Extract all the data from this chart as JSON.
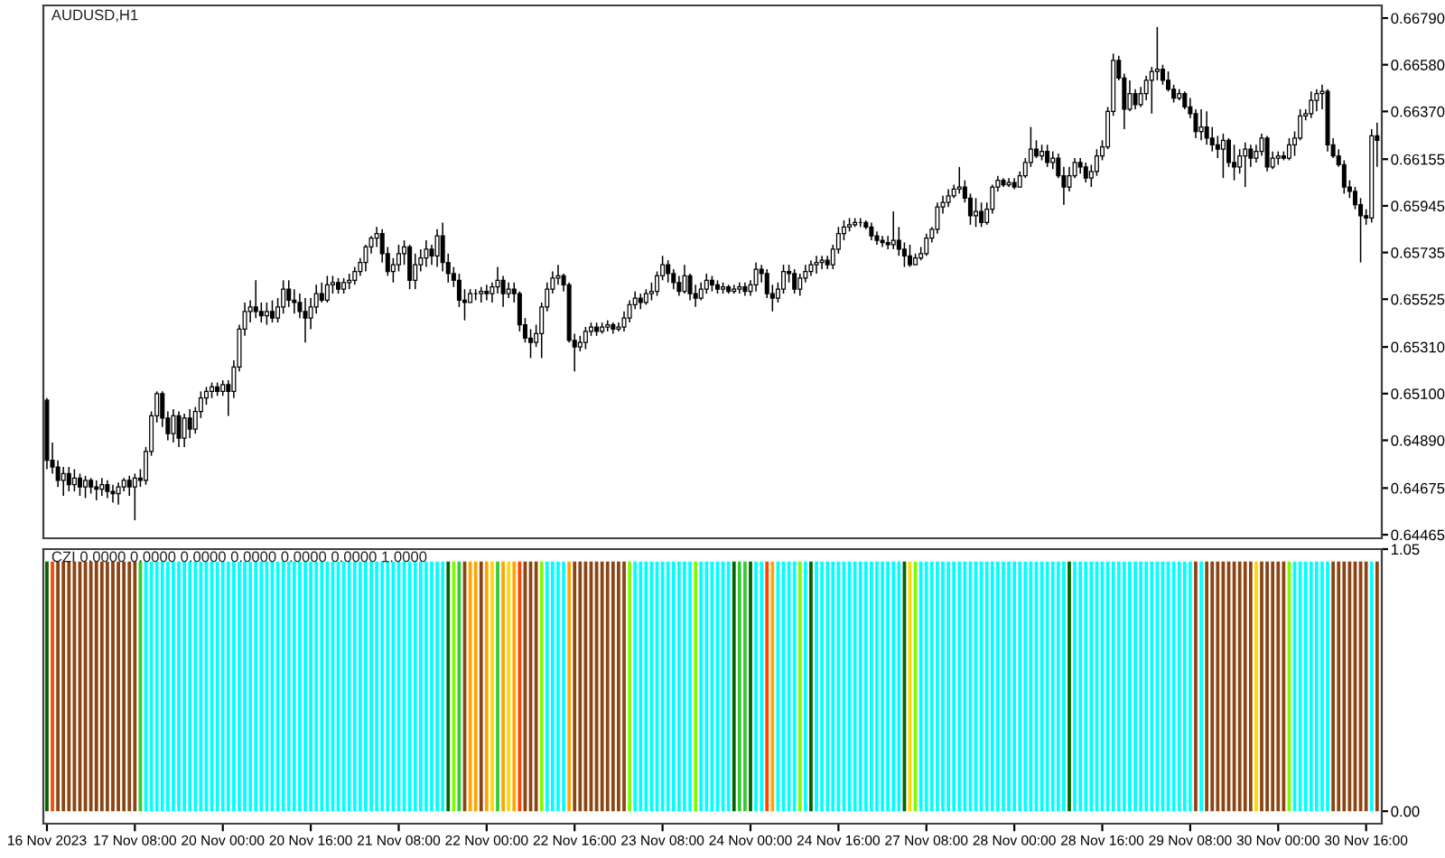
{
  "chart_data": [
    {
      "type": "candlestick",
      "title": "AUDUSD,H1",
      "categories": [
        null,
        null,
        null,
        null,
        null,
        null,
        null,
        null,
        null,
        null,
        null,
        null,
        null,
        null,
        null,
        null,
        null,
        null,
        null,
        null,
        null,
        null,
        null,
        null,
        null,
        null,
        null,
        null,
        null,
        null,
        null,
        null,
        null,
        null,
        null,
        null,
        null,
        null,
        null,
        null,
        null,
        null,
        null,
        null,
        null,
        null,
        null,
        null,
        null,
        null,
        null,
        null,
        null,
        null,
        null,
        null,
        null,
        null,
        null,
        null,
        null,
        null,
        null,
        null,
        null,
        null,
        null,
        null,
        null,
        null,
        null,
        null,
        null,
        null,
        null,
        null,
        null,
        null,
        null,
        null,
        null,
        null,
        null,
        null,
        null,
        null,
        null,
        null,
        null,
        null,
        null,
        null,
        null,
        null,
        null,
        null,
        null,
        null,
        null,
        null,
        null,
        null,
        null,
        null,
        null,
        null,
        null,
        null,
        null,
        null,
        null,
        null,
        null,
        null,
        null,
        null,
        null,
        null,
        null,
        null,
        null,
        null,
        null,
        null,
        null,
        null,
        null,
        null,
        null,
        null,
        null,
        null,
        null,
        null,
        null,
        null,
        null,
        null,
        null,
        null,
        null,
        null,
        null,
        null,
        null,
        null,
        null,
        null,
        null,
        null,
        null,
        null,
        null,
        null,
        null,
        null,
        null,
        null,
        null,
        null,
        null,
        null,
        null,
        null,
        null,
        null,
        null,
        null,
        null,
        null,
        null,
        null,
        null,
        null,
        null,
        null,
        null,
        null,
        null,
        null,
        null,
        null,
        null,
        null,
        null,
        null,
        null,
        null,
        null,
        null,
        null,
        null,
        null,
        null,
        null,
        null,
        null,
        null,
        null,
        null,
        null,
        null,
        null,
        null,
        null,
        null,
        null,
        null,
        null,
        null,
        null,
        null,
        null,
        null,
        null,
        null,
        null,
        null,
        null,
        null,
        null,
        null,
        null,
        null,
        null,
        null,
        null,
        null,
        null,
        null,
        null,
        null,
        null,
        null,
        null,
        null,
        null,
        null,
        null,
        null,
        null,
        null,
        null
      ],
      "ohlc": [
        [
          0.6507,
          0.6508,
          0.6476,
          0.648
        ],
        [
          0.648,
          0.6488,
          0.6474,
          0.6477
        ],
        [
          0.6477,
          0.648,
          0.6468,
          0.6471
        ],
        [
          0.6471,
          0.6477,
          0.6464,
          0.6474
        ],
        [
          0.6474,
          0.6477,
          0.6466,
          0.6469
        ],
        [
          0.6469,
          0.6476,
          0.6466,
          0.6472
        ],
        [
          0.6472,
          0.6474,
          0.6464,
          0.6468
        ],
        [
          0.6468,
          0.6473,
          0.6463,
          0.6471
        ],
        [
          0.6471,
          0.6472,
          0.6465,
          0.6468
        ],
        [
          0.6468,
          0.6471,
          0.6462,
          0.6467
        ],
        [
          0.6467,
          0.6472,
          0.6464,
          0.6469
        ],
        [
          0.6469,
          0.6471,
          0.6463,
          0.6466
        ],
        [
          0.6466,
          0.6469,
          0.6461,
          0.6465
        ],
        [
          0.6465,
          0.647,
          0.646,
          0.6468
        ],
        [
          0.6468,
          0.6472,
          0.6466,
          0.6471
        ],
        [
          0.6471,
          0.6473,
          0.6464,
          0.6468
        ],
        [
          0.6468,
          0.6474,
          0.6453,
          0.6472
        ],
        [
          0.6472,
          0.6476,
          0.6468,
          0.6471
        ],
        [
          0.6471,
          0.6486,
          0.6469,
          0.6484
        ],
        [
          0.6484,
          0.6502,
          0.6482,
          0.65
        ],
        [
          0.65,
          0.6511,
          0.6497,
          0.651
        ],
        [
          0.651,
          0.6511,
          0.6495,
          0.6499
        ],
        [
          0.6499,
          0.6502,
          0.6489,
          0.6492
        ],
        [
          0.6492,
          0.6503,
          0.6488,
          0.65
        ],
        [
          0.65,
          0.6502,
          0.6486,
          0.649
        ],
        [
          0.649,
          0.6501,
          0.6486,
          0.6499
        ],
        [
          0.6499,
          0.6503,
          0.649,
          0.6494
        ],
        [
          0.6494,
          0.6504,
          0.6492,
          0.6502
        ],
        [
          0.6502,
          0.6511,
          0.6499,
          0.6508
        ],
        [
          0.6508,
          0.6513,
          0.6505,
          0.6511
        ],
        [
          0.6511,
          0.6515,
          0.6508,
          0.6513
        ],
        [
          0.6513,
          0.6515,
          0.6509,
          0.6511
        ],
        [
          0.6511,
          0.6516,
          0.6509,
          0.6514
        ],
        [
          0.6514,
          0.6516,
          0.65,
          0.6511
        ],
        [
          0.6511,
          0.6525,
          0.6508,
          0.6522
        ],
        [
          0.6522,
          0.6541,
          0.652,
          0.6539
        ],
        [
          0.6539,
          0.6551,
          0.6536,
          0.6547
        ],
        [
          0.6547,
          0.6552,
          0.6542,
          0.6549
        ],
        [
          0.6549,
          0.6561,
          0.6544,
          0.6547
        ],
        [
          0.6547,
          0.6551,
          0.6542,
          0.6545
        ],
        [
          0.6545,
          0.6551,
          0.6541,
          0.6547
        ],
        [
          0.6547,
          0.6552,
          0.6542,
          0.6544
        ],
        [
          0.6544,
          0.6553,
          0.6542,
          0.6549
        ],
        [
          0.6549,
          0.6561,
          0.6546,
          0.6557
        ],
        [
          0.6557,
          0.6561,
          0.6549,
          0.6552
        ],
        [
          0.6552,
          0.6557,
          0.6546,
          0.6551
        ],
        [
          0.6551,
          0.6555,
          0.6544,
          0.6547
        ],
        [
          0.6547,
          0.6553,
          0.6533,
          0.6544
        ],
        [
          0.6544,
          0.6553,
          0.6539,
          0.6549
        ],
        [
          0.6549,
          0.6559,
          0.6546,
          0.6555
        ],
        [
          0.6555,
          0.656,
          0.6551,
          0.6552
        ],
        [
          0.6552,
          0.6563,
          0.6551,
          0.6559
        ],
        [
          0.6559,
          0.6563,
          0.6555,
          0.656
        ],
        [
          0.656,
          0.6562,
          0.6555,
          0.6557
        ],
        [
          0.6557,
          0.6562,
          0.6555,
          0.656
        ],
        [
          0.656,
          0.6564,
          0.6557,
          0.6561
        ],
        [
          0.6561,
          0.6567,
          0.6559,
          0.6565
        ],
        [
          0.6565,
          0.6571,
          0.6563,
          0.6569
        ],
        [
          0.6569,
          0.6577,
          0.6565,
          0.6576
        ],
        [
          0.6576,
          0.6581,
          0.6573,
          0.658
        ],
        [
          0.658,
          0.6585,
          0.6576,
          0.6582
        ],
        [
          0.6582,
          0.6584,
          0.6569,
          0.6573
        ],
        [
          0.6573,
          0.6576,
          0.6563,
          0.6565
        ],
        [
          0.6565,
          0.6571,
          0.656,
          0.6568
        ],
        [
          0.6568,
          0.6577,
          0.6565,
          0.6573
        ],
        [
          0.6573,
          0.6579,
          0.6568,
          0.6576
        ],
        [
          0.6576,
          0.6577,
          0.6557,
          0.6561
        ],
        [
          0.6561,
          0.6573,
          0.6557,
          0.6568
        ],
        [
          0.6568,
          0.6575,
          0.6565,
          0.6571
        ],
        [
          0.6571,
          0.6579,
          0.6567,
          0.6575
        ],
        [
          0.6575,
          0.6577,
          0.6568,
          0.6572
        ],
        [
          0.6572,
          0.6584,
          0.6567,
          0.6581
        ],
        [
          0.6581,
          0.6587,
          0.6565,
          0.6569
        ],
        [
          0.6569,
          0.6573,
          0.656,
          0.6564
        ],
        [
          0.6564,
          0.6567,
          0.6558,
          0.6561
        ],
        [
          0.6561,
          0.6564,
          0.6549,
          0.6552
        ],
        [
          0.6552,
          0.6557,
          0.6543,
          0.6551
        ],
        [
          0.6551,
          0.6557,
          0.6551,
          0.6555
        ],
        [
          0.6555,
          0.6557,
          0.6552,
          0.6555
        ],
        [
          0.6555,
          0.6558,
          0.6551,
          0.6556
        ],
        [
          0.6556,
          0.6559,
          0.6552,
          0.6555
        ],
        [
          0.6555,
          0.656,
          0.6551,
          0.6558
        ],
        [
          0.6558,
          0.6567,
          0.6555,
          0.6561
        ],
        [
          0.6561,
          0.6563,
          0.6549,
          0.6555
        ],
        [
          0.6555,
          0.656,
          0.6553,
          0.6557
        ],
        [
          0.6557,
          0.656,
          0.6551,
          0.6555
        ],
        [
          0.6555,
          0.6556,
          0.6538,
          0.6541
        ],
        [
          0.6541,
          0.6544,
          0.6533,
          0.6535
        ],
        [
          0.6535,
          0.6539,
          0.6526,
          0.6533
        ],
        [
          0.6533,
          0.6541,
          0.6531,
          0.6537
        ],
        [
          0.6537,
          0.6551,
          0.6526,
          0.6549
        ],
        [
          0.6549,
          0.656,
          0.6547,
          0.6557
        ],
        [
          0.6557,
          0.6565,
          0.6555,
          0.6562
        ],
        [
          0.6562,
          0.6568,
          0.6559,
          0.6563
        ],
        [
          0.6563,
          0.6564,
          0.6556,
          0.6559
        ],
        [
          0.6559,
          0.656,
          0.6533,
          0.6534
        ],
        [
          0.6534,
          0.6537,
          0.652,
          0.6531
        ],
        [
          0.6531,
          0.6536,
          0.6529,
          0.6533
        ],
        [
          0.6533,
          0.654,
          0.653,
          0.6538
        ],
        [
          0.6538,
          0.6542,
          0.6536,
          0.654
        ],
        [
          0.654,
          0.6542,
          0.6536,
          0.6538
        ],
        [
          0.6538,
          0.6542,
          0.6537,
          0.654
        ],
        [
          0.654,
          0.6543,
          0.6538,
          0.6541
        ],
        [
          0.6541,
          0.6542,
          0.6537,
          0.6539
        ],
        [
          0.6539,
          0.6542,
          0.6538,
          0.654
        ],
        [
          0.654,
          0.6547,
          0.6538,
          0.6544
        ],
        [
          0.6544,
          0.6552,
          0.6542,
          0.655
        ],
        [
          0.655,
          0.6556,
          0.6548,
          0.6553
        ],
        [
          0.6553,
          0.6555,
          0.6548,
          0.6551
        ],
        [
          0.6551,
          0.6557,
          0.655,
          0.6555
        ],
        [
          0.6555,
          0.656,
          0.6552,
          0.6556
        ],
        [
          0.6556,
          0.6565,
          0.6554,
          0.6563
        ],
        [
          0.6563,
          0.6572,
          0.6561,
          0.6568
        ],
        [
          0.6568,
          0.657,
          0.656,
          0.6564
        ],
        [
          0.6564,
          0.6566,
          0.6557,
          0.656
        ],
        [
          0.656,
          0.6563,
          0.6554,
          0.6556
        ],
        [
          0.6556,
          0.6568,
          0.6555,
          0.6563
        ],
        [
          0.6563,
          0.6564,
          0.6552,
          0.6555
        ],
        [
          0.6555,
          0.6559,
          0.6549,
          0.6553
        ],
        [
          0.6553,
          0.656,
          0.6552,
          0.6557
        ],
        [
          0.6557,
          0.6564,
          0.6555,
          0.6561
        ],
        [
          0.6561,
          0.6563,
          0.6556,
          0.6559
        ],
        [
          0.6559,
          0.6561,
          0.6555,
          0.6557
        ],
        [
          0.6557,
          0.656,
          0.6555,
          0.6558
        ],
        [
          0.6558,
          0.6559,
          0.6555,
          0.6556
        ],
        [
          0.6556,
          0.6559,
          0.6555,
          0.6557
        ],
        [
          0.6557,
          0.656,
          0.6555,
          0.6558
        ],
        [
          0.6558,
          0.656,
          0.6554,
          0.6556
        ],
        [
          0.6556,
          0.6561,
          0.6554,
          0.6559
        ],
        [
          0.6559,
          0.6569,
          0.6556,
          0.6566
        ],
        [
          0.6566,
          0.6568,
          0.656,
          0.6564
        ],
        [
          0.6564,
          0.6566,
          0.6553,
          0.6555
        ],
        [
          0.6555,
          0.6559,
          0.6547,
          0.6553
        ],
        [
          0.6553,
          0.656,
          0.6551,
          0.6557
        ],
        [
          0.6557,
          0.6568,
          0.6555,
          0.6565
        ],
        [
          0.6565,
          0.6568,
          0.656,
          0.6564
        ],
        [
          0.6564,
          0.6566,
          0.6555,
          0.6557
        ],
        [
          0.6557,
          0.6564,
          0.6554,
          0.6562
        ],
        [
          0.6562,
          0.6568,
          0.656,
          0.6565
        ],
        [
          0.6565,
          0.657,
          0.6563,
          0.6568
        ],
        [
          0.6568,
          0.6572,
          0.6564,
          0.6569
        ],
        [
          0.6569,
          0.6572,
          0.6566,
          0.657
        ],
        [
          0.657,
          0.6572,
          0.6566,
          0.6568
        ],
        [
          0.6568,
          0.6577,
          0.6566,
          0.6575
        ],
        [
          0.6575,
          0.6585,
          0.6573,
          0.6582
        ],
        [
          0.6582,
          0.6588,
          0.6579,
          0.6585
        ],
        [
          0.6585,
          0.6589,
          0.6583,
          0.6586
        ],
        [
          0.6586,
          0.6589,
          0.6585,
          0.6587
        ],
        [
          0.6587,
          0.6589,
          0.6585,
          0.6587
        ],
        [
          0.6587,
          0.6588,
          0.6584,
          0.6585
        ],
        [
          0.6585,
          0.6587,
          0.6579,
          0.6581
        ],
        [
          0.6581,
          0.6583,
          0.6577,
          0.6579
        ],
        [
          0.6579,
          0.6581,
          0.6576,
          0.6578
        ],
        [
          0.6578,
          0.6581,
          0.6575,
          0.6577
        ],
        [
          0.6577,
          0.6592,
          0.6575,
          0.6579
        ],
        [
          0.6579,
          0.6585,
          0.6572,
          0.6575
        ],
        [
          0.6575,
          0.6578,
          0.6567,
          0.6572
        ],
        [
          0.6572,
          0.6577,
          0.6567,
          0.6568
        ],
        [
          0.6568,
          0.6573,
          0.6568,
          0.6571
        ],
        [
          0.6571,
          0.6576,
          0.657,
          0.6573
        ],
        [
          0.6573,
          0.6582,
          0.6572,
          0.658
        ],
        [
          0.658,
          0.6585,
          0.6578,
          0.6584
        ],
        [
          0.6584,
          0.6596,
          0.6582,
          0.6594
        ],
        [
          0.6594,
          0.6599,
          0.6591,
          0.6596
        ],
        [
          0.6596,
          0.6602,
          0.6594,
          0.6599
        ],
        [
          0.6599,
          0.6604,
          0.6598,
          0.6602
        ],
        [
          0.6602,
          0.6612,
          0.66,
          0.6603
        ],
        [
          0.6603,
          0.6606,
          0.6596,
          0.6598
        ],
        [
          0.6598,
          0.66,
          0.6586,
          0.659
        ],
        [
          0.659,
          0.6598,
          0.6585,
          0.6592
        ],
        [
          0.6592,
          0.6596,
          0.6585,
          0.6587
        ],
        [
          0.6587,
          0.6596,
          0.6586,
          0.6593
        ],
        [
          0.6593,
          0.6604,
          0.6591,
          0.6603
        ],
        [
          0.6603,
          0.6608,
          0.6601,
          0.6606
        ],
        [
          0.6606,
          0.6607,
          0.6603,
          0.6604
        ],
        [
          0.6604,
          0.6607,
          0.6603,
          0.6605
        ],
        [
          0.6605,
          0.6607,
          0.6602,
          0.6603
        ],
        [
          0.6603,
          0.661,
          0.6603,
          0.6608
        ],
        [
          0.6608,
          0.6616,
          0.6607,
          0.6614
        ],
        [
          0.6614,
          0.663,
          0.6612,
          0.662
        ],
        [
          0.662,
          0.6624,
          0.6616,
          0.6617
        ],
        [
          0.6617,
          0.6622,
          0.6615,
          0.6619
        ],
        [
          0.6619,
          0.6622,
          0.6612,
          0.6614
        ],
        [
          0.6614,
          0.6619,
          0.6611,
          0.6616
        ],
        [
          0.6616,
          0.6618,
          0.6607,
          0.6608
        ],
        [
          0.6608,
          0.6612,
          0.6595,
          0.6603
        ],
        [
          0.6603,
          0.6612,
          0.6601,
          0.6608
        ],
        [
          0.6608,
          0.6616,
          0.6607,
          0.6614
        ],
        [
          0.6614,
          0.6616,
          0.6609,
          0.6612
        ],
        [
          0.6612,
          0.6614,
          0.6605,
          0.6607
        ],
        [
          0.6607,
          0.6613,
          0.6603,
          0.661
        ],
        [
          0.661,
          0.662,
          0.6608,
          0.6617
        ],
        [
          0.6617,
          0.6624,
          0.6615,
          0.6621
        ],
        [
          0.6621,
          0.6639,
          0.662,
          0.6637
        ],
        [
          0.6637,
          0.6663,
          0.6635,
          0.666
        ],
        [
          0.666,
          0.6662,
          0.6651,
          0.6652
        ],
        [
          0.6652,
          0.6654,
          0.6629,
          0.6638
        ],
        [
          0.6638,
          0.6651,
          0.6637,
          0.6645
        ],
        [
          0.6645,
          0.6647,
          0.6638,
          0.664
        ],
        [
          0.664,
          0.6648,
          0.6639,
          0.6645
        ],
        [
          0.6645,
          0.6653,
          0.6642,
          0.6651
        ],
        [
          0.6651,
          0.6657,
          0.6636,
          0.6655
        ],
        [
          0.6655,
          0.6675,
          0.6651,
          0.6656
        ],
        [
          0.6656,
          0.6658,
          0.6649,
          0.6651
        ],
        [
          0.6651,
          0.6655,
          0.6646,
          0.6647
        ],
        [
          0.6647,
          0.6649,
          0.6641,
          0.6643
        ],
        [
          0.6643,
          0.6647,
          0.6642,
          0.6645
        ],
        [
          0.6645,
          0.6646,
          0.6638,
          0.6639
        ],
        [
          0.6639,
          0.6643,
          0.6634,
          0.6636
        ],
        [
          0.6636,
          0.6638,
          0.6625,
          0.6628
        ],
        [
          0.6628,
          0.6638,
          0.6624,
          0.663
        ],
        [
          0.663,
          0.6637,
          0.6622,
          0.6625
        ],
        [
          0.6625,
          0.663,
          0.6619,
          0.6622
        ],
        [
          0.6622,
          0.6626,
          0.6616,
          0.662
        ],
        [
          0.662,
          0.6627,
          0.6607,
          0.6624
        ],
        [
          0.6624,
          0.6625,
          0.6612,
          0.6614
        ],
        [
          0.6614,
          0.6622,
          0.6606,
          0.6612
        ],
        [
          0.6612,
          0.662,
          0.6609,
          0.6617
        ],
        [
          0.6617,
          0.6623,
          0.6603,
          0.662
        ],
        [
          0.662,
          0.6622,
          0.6612,
          0.6616
        ],
        [
          0.6616,
          0.6622,
          0.6614,
          0.6619
        ],
        [
          0.6619,
          0.6627,
          0.6617,
          0.6625
        ],
        [
          0.6625,
          0.6626,
          0.661,
          0.6612
        ],
        [
          0.6612,
          0.6619,
          0.6611,
          0.6616
        ],
        [
          0.6616,
          0.6619,
          0.6613,
          0.6617
        ],
        [
          0.6617,
          0.6619,
          0.6615,
          0.6616
        ],
        [
          0.6616,
          0.6625,
          0.6615,
          0.6622
        ],
        [
          0.6622,
          0.6628,
          0.6617,
          0.6625
        ],
        [
          0.6625,
          0.6638,
          0.6624,
          0.6635
        ],
        [
          0.6635,
          0.6638,
          0.6633,
          0.6636
        ],
        [
          0.6636,
          0.6646,
          0.6634,
          0.6642
        ],
        [
          0.6642,
          0.6647,
          0.6637,
          0.6645
        ],
        [
          0.6645,
          0.6649,
          0.6638,
          0.6646
        ],
        [
          0.6646,
          0.6647,
          0.6619,
          0.6622
        ],
        [
          0.6622,
          0.6625,
          0.6616,
          0.6617
        ],
        [
          0.6617,
          0.662,
          0.6612,
          0.6613
        ],
        [
          0.6613,
          0.6615,
          0.66,
          0.6603
        ],
        [
          0.6603,
          0.6606,
          0.6598,
          0.6601
        ],
        [
          0.6601,
          0.6603,
          0.6593,
          0.6595
        ],
        [
          0.6595,
          0.6598,
          0.6569,
          0.659
        ],
        [
          0.659,
          0.6593,
          0.6586,
          0.6589
        ],
        [
          0.6589,
          0.6629,
          0.6587,
          0.6626
        ],
        [
          0.6626,
          0.6632,
          0.6612,
          0.6624
        ]
      ],
      "ylim": [
        0.64449,
        0.66847
      ],
      "yticks": [
        {
          "value": 0.6679,
          "label": "0.66790"
        },
        {
          "value": 0.6658,
          "label": "0.66580"
        },
        {
          "value": 0.6637,
          "label": "0.66370"
        },
        0.66155,
        0.65945,
        0.65735,
        0.65525,
        {
          "value": 0.6531,
          "label": "0.65310"
        },
        {
          "value": 0.651,
          "label": "0.65100"
        },
        {
          "value": 0.6489,
          "label": "0.64890"
        },
        0.64675,
        0.64465
      ],
      "tick_labels": "y"
    },
    {
      "type": "bar",
      "title": "CZI 0.0000 0.0000 0.0000 0.0000 0.0000 0.0000 1.0000",
      "categories": [
        "16 Nov 2023",
        null,
        null,
        null,
        null,
        null,
        null,
        null,
        null,
        null,
        null,
        null,
        null,
        null,
        null,
        null,
        "17 Nov 08:00",
        null,
        null,
        null,
        null,
        null,
        null,
        null,
        null,
        null,
        null,
        null,
        null,
        null,
        null,
        null,
        "20 Nov 00:00",
        null,
        null,
        null,
        null,
        null,
        null,
        null,
        null,
        null,
        null,
        null,
        null,
        null,
        null,
        null,
        "20 Nov 16:00",
        null,
        null,
        null,
        null,
        null,
        null,
        null,
        null,
        null,
        null,
        null,
        null,
        null,
        null,
        null,
        "21 Nov 08:00",
        null,
        null,
        null,
        null,
        null,
        null,
        null,
        null,
        null,
        null,
        null,
        null,
        null,
        null,
        null,
        "22 Nov 00:00",
        null,
        null,
        null,
        null,
        null,
        null,
        null,
        null,
        null,
        null,
        null,
        null,
        null,
        null,
        null,
        "22 Nov 16:00",
        null,
        null,
        null,
        null,
        null,
        null,
        null,
        null,
        null,
        null,
        null,
        null,
        null,
        null,
        null,
        "23 Nov 08:00",
        null,
        null,
        null,
        null,
        null,
        null,
        null,
        null,
        null,
        null,
        null,
        null,
        null,
        null,
        null,
        "24 Nov 00:00",
        null,
        null,
        null,
        null,
        null,
        null,
        null,
        null,
        null,
        null,
        null,
        null,
        null,
        null,
        null,
        "24 Nov 16:00",
        null,
        null,
        null,
        null,
        null,
        null,
        null,
        null,
        null,
        null,
        null,
        null,
        null,
        null,
        null,
        "27 Nov 08:00",
        null,
        null,
        null,
        null,
        null,
        null,
        null,
        null,
        null,
        null,
        null,
        null,
        null,
        null,
        null,
        "28 Nov 00:00",
        null,
        null,
        null,
        null,
        null,
        null,
        null,
        null,
        null,
        null,
        null,
        null,
        null,
        null,
        null,
        "28 Nov 16:00",
        null,
        null,
        null,
        null,
        null,
        null,
        null,
        null,
        null,
        null,
        null,
        null,
        null,
        null,
        null,
        "29 Nov 08:00",
        null,
        null,
        null,
        null,
        null,
        null,
        null,
        null,
        null,
        null,
        null,
        null,
        null,
        null,
        null,
        "30 Nov 00:00",
        null,
        null,
        null,
        null,
        null,
        null,
        null,
        null,
        null,
        null,
        null,
        null,
        null,
        null,
        null,
        "30 Nov 16:00",
        null,
        null
      ],
      "values": [
        1,
        1,
        1,
        1,
        1,
        1,
        1,
        1,
        1,
        1,
        1,
        1,
        1,
        1,
        1,
        1,
        1,
        1,
        1,
        1,
        1,
        1,
        1,
        1,
        1,
        1,
        1,
        1,
        1,
        1,
        1,
        1,
        1,
        1,
        1,
        1,
        1,
        1,
        1,
        1,
        1,
        1,
        1,
        1,
        1,
        1,
        1,
        1,
        1,
        1,
        1,
        1,
        1,
        1,
        1,
        1,
        1,
        1,
        1,
        1,
        1,
        1,
        1,
        1,
        1,
        1,
        1,
        1,
        1,
        1,
        1,
        1,
        1,
        1,
        1,
        1,
        1,
        1,
        1,
        1,
        1,
        1,
        1,
        1,
        1,
        1,
        1,
        1,
        1,
        1,
        1,
        1,
        1,
        1,
        1,
        1,
        1,
        1,
        1,
        1,
        1,
        1,
        1,
        1,
        1,
        1,
        1,
        1,
        1,
        1,
        1,
        1,
        1,
        1,
        1,
        1,
        1,
        1,
        1,
        1,
        1,
        1,
        1,
        1,
        1,
        1,
        1,
        1,
        1,
        1,
        1,
        1,
        1,
        1,
        1,
        1,
        1,
        1,
        1,
        1,
        1,
        1,
        1,
        1,
        1,
        1,
        1,
        1,
        1,
        1,
        1,
        1,
        1,
        1,
        1,
        1,
        1,
        1,
        1,
        1,
        1,
        1,
        1,
        1,
        1,
        1,
        1,
        1,
        1,
        1,
        1,
        1,
        1,
        1,
        1,
        1,
        1,
        1,
        1,
        1,
        1,
        1,
        1,
        1,
        1,
        1,
        1,
        1,
        1,
        1,
        1,
        1,
        1,
        1,
        1,
        1,
        1,
        1,
        1,
        1,
        1,
        1,
        1,
        1,
        1,
        1,
        1,
        1,
        1,
        1,
        1,
        1,
        1,
        1,
        1,
        1,
        1,
        1,
        1,
        1,
        1,
        1,
        1,
        1,
        1,
        1,
        1,
        1,
        1,
        1,
        1,
        1,
        1,
        1,
        1,
        1,
        1,
        1,
        1,
        1,
        1,
        1,
        1
      ],
      "colors": [
        "#006400",
        "#FF4500",
        "#8B4513",
        "#8B4513",
        "#8B4513",
        "#8B4513",
        "#8B4513",
        "#8B4513",
        "#8B4513",
        "#8B4513",
        "#8B4513",
        "#8B4513",
        "#8B4513",
        "#8B4513",
        "#8B4513",
        "#8B4513",
        "#8B4513",
        "#32CD32",
        "#00FFFF",
        "#00FFFF",
        "#00FFFF",
        "#00FFFF",
        "#00FFFF",
        "#00FFFF",
        "#00FFFF",
        "#00FFFF",
        "#00FFFF",
        "#00FFFF",
        "#00FFFF",
        "#00FFFF",
        "#00FFFF",
        "#00FFFF",
        "#00FFFF",
        "#00FFFF",
        "#00FFFF",
        "#00FFFF",
        "#00FFFF",
        "#00FFFF",
        "#00FFFF",
        "#00FFFF",
        "#00FFFF",
        "#00FFFF",
        "#00FFFF",
        "#00FFFF",
        "#00FFFF",
        "#00FFFF",
        "#00FFFF",
        "#00FFFF",
        "#00FFFF",
        "#00FFFF",
        "#00FFFF",
        "#00FFFF",
        "#00FFFF",
        "#00FFFF",
        "#00FFFF",
        "#00FFFF",
        "#00FFFF",
        "#00FFFF",
        "#00FFFF",
        "#00FFFF",
        "#00FFFF",
        "#00FFFF",
        "#00FFFF",
        "#00FFFF",
        "#00FFFF",
        "#00FFFF",
        "#00FFFF",
        "#00FFFF",
        "#00FFFF",
        "#00FFFF",
        "#00FFFF",
        "#00FFFF",
        "#00FFFF",
        "#006400",
        "#7CFC00",
        "#32CD32",
        "#8B4513",
        "#FFA500",
        "#FFA500",
        "#8B4513",
        "#FFA500",
        "#FFD700",
        "#32CD32",
        "#FFA500",
        "#FFD700",
        "#FFA500",
        "#FF4500",
        "#8B4513",
        "#8B4513",
        "#8B4513",
        "#7CFC00",
        "#00FFFF",
        "#00FFFF",
        "#00FFFF",
        "#00FFFF",
        "#FFA500",
        "#8B4513",
        "#8B4513",
        "#8B4513",
        "#8B4513",
        "#8B4513",
        "#8B4513",
        "#8B4513",
        "#8B4513",
        "#8B4513",
        "#8B4513",
        "#7CFC00",
        "#00FFFF",
        "#00FFFF",
        "#00FFFF",
        "#00FFFF",
        "#00FFFF",
        "#00FFFF",
        "#00FFFF",
        "#00FFFF",
        "#00FFFF",
        "#00FFFF",
        "#00FFFF",
        "#7CFC00",
        "#00FFFF",
        "#00FFFF",
        "#00FFFF",
        "#00FFFF",
        "#00FFFF",
        "#00FFFF",
        "#006400",
        "#32CD32",
        "#32CD32",
        "#006400",
        "#00FFFF",
        "#00FFFF",
        "#FF4500",
        "#FFA500",
        "#00FFFF",
        "#00FFFF",
        "#00FFFF",
        "#00FFFF",
        "#7CFC00",
        "#00FFFF",
        "#006400",
        "#00FFFF",
        "#00FFFF",
        "#00FFFF",
        "#00FFFF",
        "#00FFFF",
        "#00FFFF",
        "#00FFFF",
        "#00FFFF",
        "#00FFFF",
        "#00FFFF",
        "#00FFFF",
        "#00FFFF",
        "#00FFFF",
        "#00FFFF",
        "#00FFFF",
        "#00FFFF",
        "#006400",
        "#FFD700",
        "#7CFC00",
        "#00FFFF",
        "#00FFFF",
        "#00FFFF",
        "#00FFFF",
        "#00FFFF",
        "#00FFFF",
        "#00FFFF",
        "#00FFFF",
        "#00FFFF",
        "#00FFFF",
        "#00FFFF",
        "#00FFFF",
        "#00FFFF",
        "#00FFFF",
        "#00FFFF",
        "#00FFFF",
        "#00FFFF",
        "#00FFFF",
        "#00FFFF",
        "#00FFFF",
        "#00FFFF",
        "#00FFFF",
        "#00FFFF",
        "#00FFFF",
        "#00FFFF",
        "#00FFFF",
        "#00FFFF",
        "#006400",
        "#00FFFF",
        "#00FFFF",
        "#00FFFF",
        "#00FFFF",
        "#00FFFF",
        "#00FFFF",
        "#00FFFF",
        "#00FFFF",
        "#00FFFF",
        "#00FFFF",
        "#00FFFF",
        "#00FFFF",
        "#00FFFF",
        "#00FFFF",
        "#00FFFF",
        "#00FFFF",
        "#00FFFF",
        "#00FFFF",
        "#00FFFF",
        "#00FFFF",
        "#00FFFF",
        "#00FFFF",
        "#8B4513",
        "#00FFFF",
        "#8B4513",
        "#8B4513",
        "#8B4513",
        "#8B4513",
        "#8B4513",
        "#8B4513",
        "#8B4513",
        "#8B4513",
        "#8B4513",
        "#FFD700",
        "#8B4513",
        "#8B4513",
        "#8B4513",
        "#8B4513",
        "#8B4513",
        "#7CFC00",
        "#00FFFF",
        "#00FFFF",
        "#00FFFF",
        "#00FFFF",
        "#00FFFF",
        "#00FFFF",
        "#00FFFF",
        "#8B4513",
        "#8B4513",
        "#8B4513",
        "#8B4513",
        "#8B4513",
        "#8B4513",
        "#8B4513",
        "#00FFFF",
        "#8B4513"
      ],
      "ylim": [
        -0.05,
        1.05
      ],
      "yticks": [
        1.05,
        {
          "value": 0,
          "label": "0.00"
        }
      ]
    }
  ]
}
